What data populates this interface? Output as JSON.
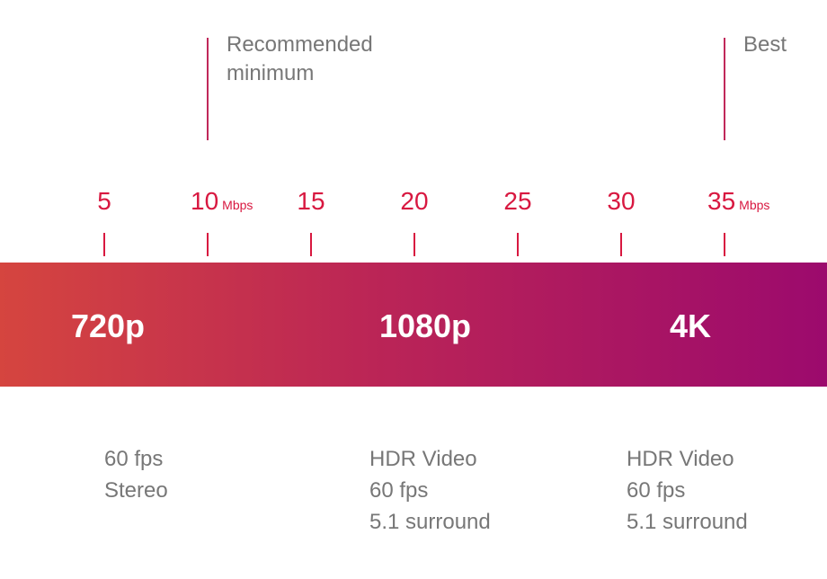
{
  "markers": [
    {
      "lines": [
        "Recommended",
        "minimum"
      ]
    },
    {
      "lines": [
        "Best"
      ]
    }
  ],
  "ticks": [
    {
      "label": "5"
    },
    {
      "label": "10",
      "unit": "Mbps"
    },
    {
      "label": "15"
    },
    {
      "label": "20"
    },
    {
      "label": "25"
    },
    {
      "label": "30"
    },
    {
      "label": "35",
      "unit": "Mbps"
    }
  ],
  "tiers": [
    {
      "name": "720p",
      "features": [
        "60 fps",
        "Stereo"
      ]
    },
    {
      "name": "1080p",
      "features": [
        "HDR Video",
        "60 fps",
        "5.1 surround"
      ]
    },
    {
      "name": "4K",
      "features": [
        "HDR Video",
        "60 fps",
        "5.1 surround"
      ]
    }
  ]
}
